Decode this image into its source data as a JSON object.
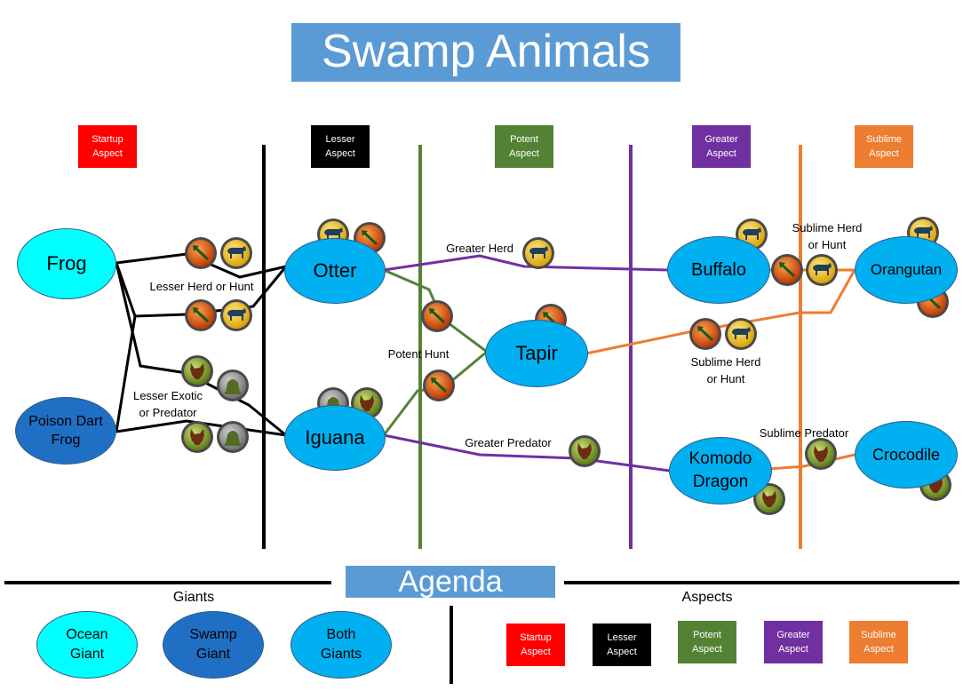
{
  "title": "Swamp Animals",
  "aspects_header": {
    "startup": "Startup\nAspect",
    "lesser": "Lesser\nAspect",
    "potent": "Potent\nAspect",
    "greater": "Greater\nAspect",
    "sublime": "Sublime\nAspect"
  },
  "colors": {
    "startup": "#ff0000",
    "lesser": "#000000",
    "potent": "#548235",
    "greater": "#7030a0",
    "sublime": "#ed7d31",
    "ocean_giant": "#00ffff",
    "swamp_giant": "#1f6fc5",
    "both_giants": "#00b0f0",
    "hunt_badge": "#e2500f",
    "herd_badge": "#f2c418",
    "predator_badge": "#7a9b2c",
    "exotic_badge": "#8c8c8c"
  },
  "animals": {
    "frog": "Frog",
    "poison_dart_frog": "Poison Dart\nFrog",
    "otter": "Otter",
    "iguana": "Iguana",
    "tapir": "Tapir",
    "buffalo": "Buffalo",
    "komodo_dragon": "Komodo\nDragon",
    "orangutan": "Orangutan",
    "crocodile": "Crocodile"
  },
  "edge_labels": {
    "lesser_herd_hunt": "Lesser Herd or Hunt",
    "lesser_exotic_predator": "Lesser Exotic\nor Predator",
    "greater_herd": "Greater Herd",
    "potent_hunt": "Potent Hunt",
    "greater_predator": "Greater Predator",
    "sublime_herd_hunt_top": "Sublime Herd\nor Hunt",
    "sublime_herd_hunt_mid": "Sublime Herd\nor Hunt",
    "sublime_predator": "Sublime Predator"
  },
  "agenda": {
    "title": "Agenda",
    "giants_header": "Giants",
    "aspects_header": "Aspects",
    "giants": {
      "ocean": "Ocean\nGiant",
      "swamp": "Swamp\nGiant",
      "both": "Both\nGiants"
    },
    "aspects": {
      "startup": "Startup\nAspect",
      "lesser": "Lesser\nAspect",
      "potent": "Potent\nAspect",
      "greater": "Greater\nAspect",
      "sublime": "Sublime\nAspect"
    }
  },
  "badge_icons": {
    "hunt": "arrow-icon",
    "herd": "cow-icon",
    "predator": "wolf-head-icon",
    "exotic": "bell-icon"
  }
}
